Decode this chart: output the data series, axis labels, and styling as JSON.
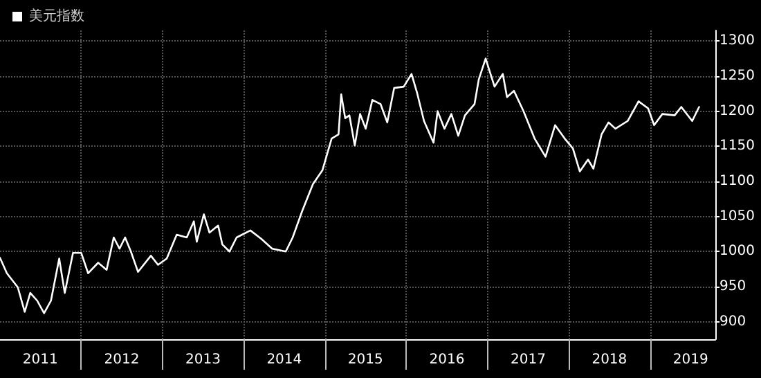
{
  "chart_data": {
    "type": "line",
    "legend": "top left",
    "grid": true,
    "marker": "none",
    "line_style": "solid",
    "xlim": [
      "2011-01-01",
      "2019-10-20"
    ],
    "xticks": [
      {
        "value": "2011-07-01",
        "label": "2011"
      },
      {
        "value": "2012-01-01",
        "label": null
      },
      {
        "value": "2012-07-01",
        "label": "2012"
      },
      {
        "value": "2013-01-01",
        "label": null
      },
      {
        "value": "2013-07-01",
        "label": "2013"
      },
      {
        "value": "2014-01-01",
        "label": null
      },
      {
        "value": "2014-07-01",
        "label": "2014"
      },
      {
        "value": "2015-01-01",
        "label": null
      },
      {
        "value": "2015-07-01",
        "label": "2015"
      },
      {
        "value": "2016-01-01",
        "label": null
      },
      {
        "value": "2016-07-01",
        "label": "2016"
      },
      {
        "value": "2017-01-01",
        "label": null
      },
      {
        "value": "2017-07-01",
        "label": "2017"
      },
      {
        "value": "2018-01-01",
        "label": null
      },
      {
        "value": "2018-07-01",
        "label": "2018"
      },
      {
        "value": "2019-01-01",
        "label": null
      },
      {
        "value": "2019-07-01",
        "label": "2019"
      }
    ],
    "ylim": [
      875,
      1315
    ],
    "yticks": [
      900,
      950,
      1000,
      1050,
      1100,
      1150,
      1200,
      1250,
      1300
    ],
    "series": [
      {
        "name": "美元指数",
        "color": "#ffffff",
        "x": [
          "2011-01-01",
          "2011-02-01",
          "2011-03-22",
          "2011-04-22",
          "2011-05-17",
          "2011-06-17",
          "2011-07-18",
          "2011-08-18",
          "2011-09-24",
          "2011-10-19",
          "2011-11-25",
          "2012-01-01",
          "2012-02-01",
          "2012-03-17",
          "2012-04-24",
          "2012-05-26",
          "2012-06-21",
          "2012-07-16",
          "2012-08-11",
          "2012-09-12",
          "2012-11-09",
          "2012-12-11",
          "2013-01-19",
          "2013-03-05",
          "2013-04-19",
          "2013-05-21",
          "2013-06-03",
          "2013-07-05",
          "2013-07-30",
          "2013-09-07",
          "2013-09-26",
          "2013-10-28",
          "2013-11-29",
          "2014-01-30",
          "2014-03-20",
          "2014-05-08",
          "2014-07-08",
          "2014-08-08",
          "2014-09-19",
          "2014-10-14",
          "2014-11-07",
          "2014-12-20",
          "2015-01-30",
          "2015-03-02",
          "2015-03-14",
          "2015-04-01",
          "2015-04-20",
          "2015-05-14",
          "2015-06-07",
          "2015-07-02",
          "2015-08-01",
          "2015-09-07",
          "2015-10-07",
          "2015-11-07",
          "2015-12-20",
          "2016-01-24",
          "2016-02-18",
          "2016-03-20",
          "2016-05-02",
          "2016-05-20",
          "2016-06-20",
          "2016-07-21",
          "2016-08-21",
          "2016-09-20",
          "2016-11-02",
          "2016-11-21",
          "2016-12-22",
          "2017-01-31",
          "2017-03-09",
          "2017-03-28",
          "2017-04-28",
          "2017-06-10",
          "2017-07-30",
          "2017-09-17",
          "2017-10-30",
          "2017-12-12",
          "2018-01-18",
          "2018-02-18",
          "2018-03-27",
          "2018-04-20",
          "2018-05-27",
          "2018-06-27",
          "2018-07-28",
          "2018-09-21",
          "2018-11-09",
          "2018-12-22",
          "2019-01-18",
          "2019-02-24",
          "2019-04-20",
          "2019-05-20",
          "2019-07-08",
          "2019-08-08"
        ],
        "values": [
          991,
          969,
          949,
          914,
          941,
          930,
          912,
          930,
          990,
          941,
          998,
          998,
          969,
          984,
          974,
          1020,
          1004,
          1020,
          1000,
          971,
          994,
          981,
          990,
          1024,
          1020,
          1043,
          1014,
          1053,
          1027,
          1037,
          1010,
          1000,
          1020,
          1030,
          1018,
          1004,
          1000,
          1020,
          1057,
          1077,
          1096,
          1116,
          1161,
          1167,
          1224,
          1190,
          1194,
          1151,
          1196,
          1175,
          1216,
          1210,
          1184,
          1233,
          1235,
          1253,
          1226,
          1186,
          1155,
          1200,
          1175,
          1196,
          1165,
          1194,
          1210,
          1245,
          1275,
          1235,
          1253,
          1220,
          1229,
          1200,
          1161,
          1135,
          1180,
          1161,
          1147,
          1114,
          1131,
          1118,
          1167,
          1184,
          1175,
          1186,
          1214,
          1204,
          1180,
          1196,
          1194,
          1206,
          1186,
          1206
        ]
      }
    ]
  }
}
